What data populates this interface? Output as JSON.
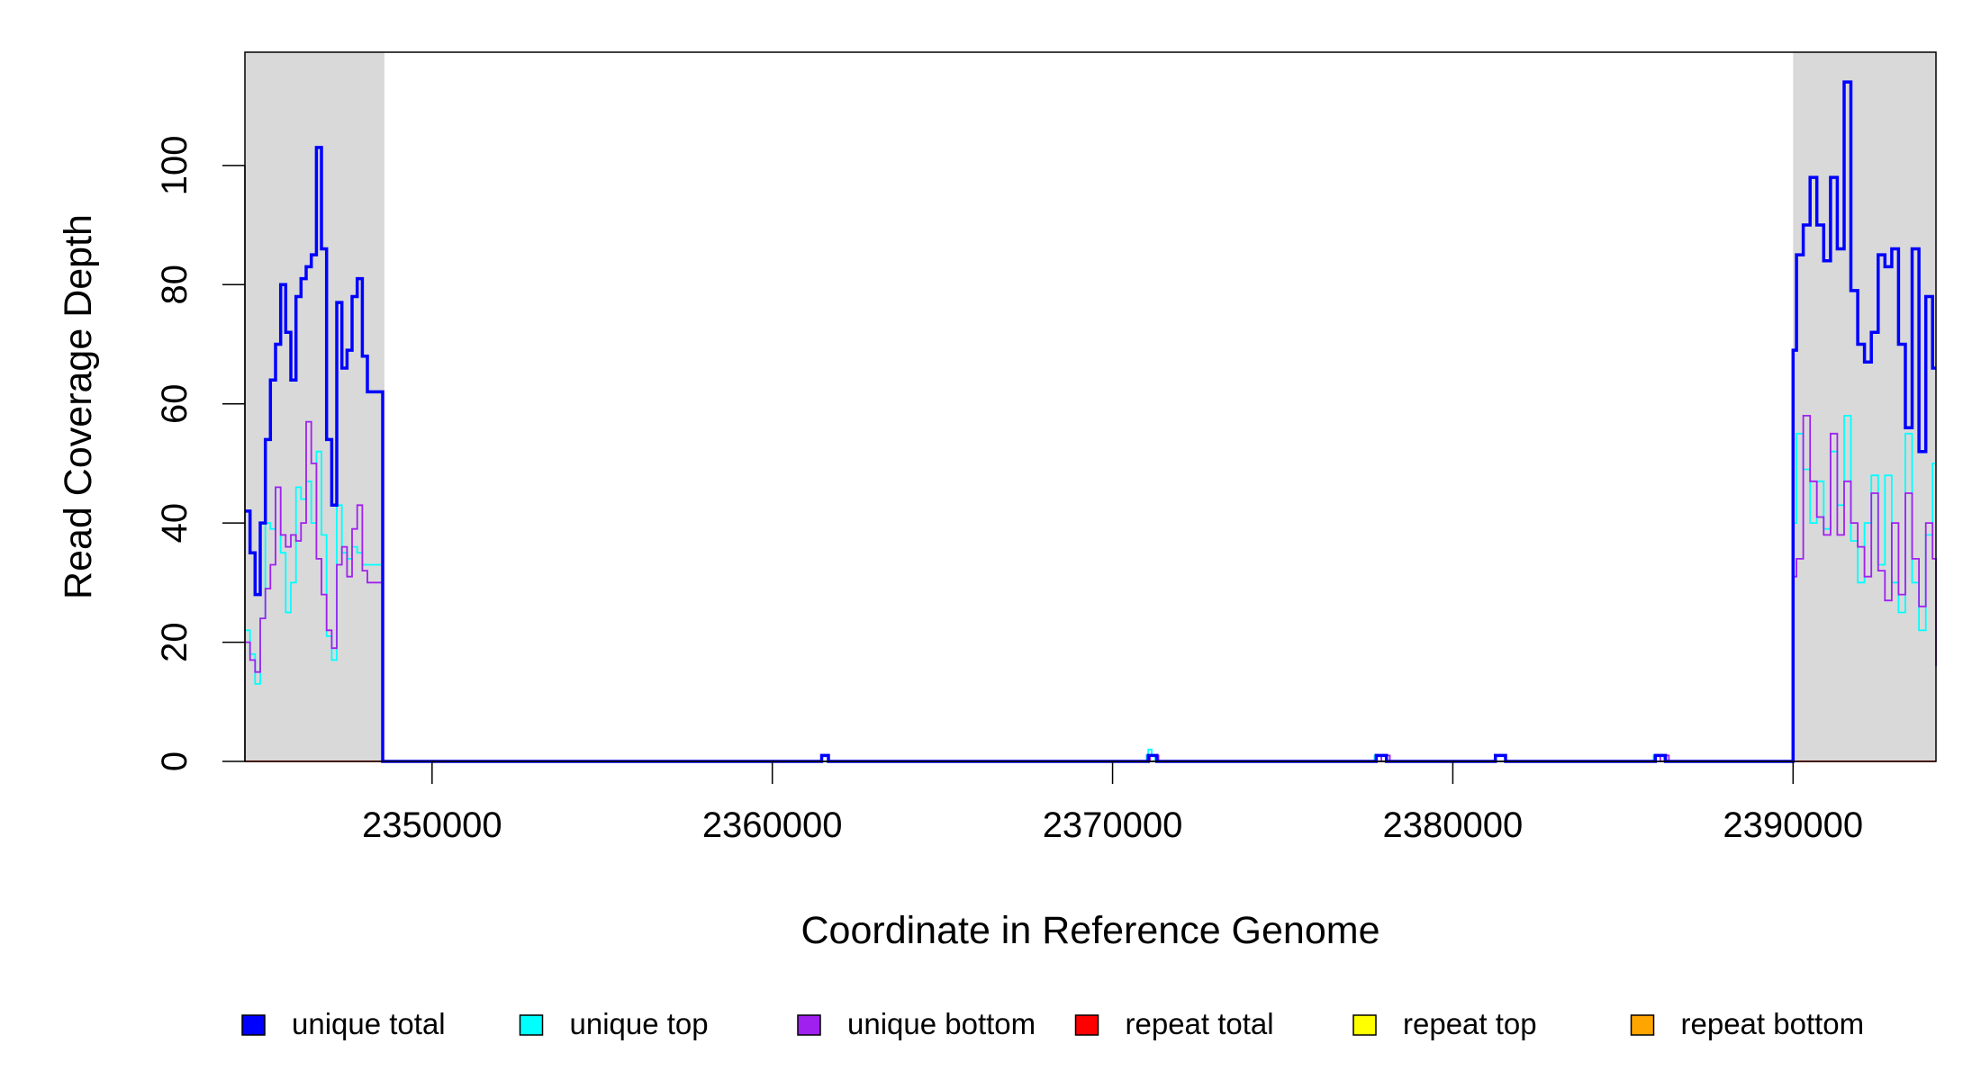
{
  "chart_data": {
    "type": "line",
    "title": "",
    "xlabel": "Coordinate in Reference Genome",
    "ylabel": "Read Coverage Depth",
    "xlim": [
      2344500,
      2394200
    ],
    "ylim": [
      0,
      119
    ],
    "x_ticks": [
      2350000,
      2360000,
      2370000,
      2380000,
      2390000
    ],
    "x_tick_labels": [
      "2350000",
      "2360000",
      "2370000",
      "2380000",
      "2390000"
    ],
    "y_ticks": [
      0,
      20,
      40,
      60,
      80,
      100
    ],
    "y_tick_labels": [
      "0",
      "20",
      "40",
      "60",
      "80",
      "100"
    ],
    "shaded_regions": [
      [
        2344500,
        2348600
      ],
      [
        2390000,
        2394200
      ]
    ],
    "shade_color": "#d9d9d9",
    "legend_position": "bottom",
    "series": [
      {
        "name": "unique total",
        "color": "#0000ff",
        "x": [
          2344500,
          2344650,
          2344800,
          2344950,
          2345100,
          2345250,
          2345400,
          2345550,
          2345700,
          2345850,
          2346000,
          2346150,
          2346300,
          2346450,
          2346600,
          2346750,
          2346900,
          2347050,
          2347200,
          2347350,
          2347500,
          2347650,
          2347800,
          2347950,
          2348100,
          2348250,
          2348400,
          2348480,
          2348550,
          2348650,
          2361400,
          2361450,
          2361600,
          2361650,
          2371000,
          2371050,
          2371200,
          2371300,
          2377700,
          2377750,
          2378000,
          2378050,
          2381200,
          2381250,
          2381500,
          2381550,
          2385900,
          2385950,
          2386200,
          2386250,
          2390000,
          2390100,
          2390300,
          2390500,
          2390700,
          2390900,
          2391100,
          2391300,
          2391500,
          2391700,
          2391900,
          2392100,
          2392300,
          2392500,
          2392700,
          2392900,
          2393100,
          2393300,
          2393500,
          2393700,
          2393900,
          2394100,
          2394200
        ],
        "y": [
          42,
          35,
          28,
          40,
          54,
          64,
          70,
          80,
          72,
          64,
          78,
          81,
          83,
          85,
          103,
          86,
          54,
          43,
          77,
          66,
          69,
          78,
          81,
          68,
          62,
          62,
          62,
          62,
          0,
          0,
          0,
          1,
          1,
          0,
          0,
          1,
          1,
          0,
          0,
          1,
          1,
          0,
          0,
          1,
          1,
          0,
          0,
          1,
          1,
          0,
          69,
          85,
          90,
          98,
          90,
          84,
          98,
          86,
          114,
          79,
          70,
          67,
          72,
          85,
          83,
          86,
          70,
          56,
          86,
          52,
          78,
          66,
          66
        ]
      },
      {
        "name": "unique top",
        "color": "#00ffff",
        "x": [
          2344500,
          2344650,
          2344800,
          2344950,
          2345100,
          2345250,
          2345400,
          2345550,
          2345700,
          2345850,
          2346000,
          2346150,
          2346300,
          2346450,
          2346600,
          2346750,
          2346900,
          2347050,
          2347200,
          2347350,
          2347500,
          2347650,
          2347800,
          2347950,
          2348100,
          2348250,
          2348400,
          2348480,
          2348550,
          2348650,
          2370950,
          2371000,
          2371050,
          2371150,
          2371250,
          2377650,
          2377700,
          2378000,
          2378050,
          2385850,
          2385900,
          2386150,
          2386200,
          2390000,
          2390100,
          2390300,
          2390500,
          2390700,
          2390900,
          2391100,
          2391300,
          2391500,
          2391700,
          2391900,
          2392100,
          2392300,
          2392500,
          2392700,
          2392900,
          2393100,
          2393300,
          2393500,
          2393700,
          2393900,
          2394100,
          2394200
        ],
        "y": [
          22,
          18,
          13,
          24,
          40,
          39,
          46,
          35,
          25,
          30,
          46,
          44,
          47,
          40,
          52,
          38,
          21,
          17,
          43,
          35,
          34,
          36,
          35,
          33,
          33,
          33,
          33,
          33,
          0,
          0,
          0,
          1,
          2,
          1,
          0,
          0,
          1,
          1,
          0,
          0,
          1,
          1,
          0,
          40,
          55,
          49,
          40,
          47,
          39,
          52,
          43,
          58,
          37,
          30,
          40,
          48,
          33,
          48,
          30,
          25,
          55,
          30,
          22,
          38,
          50,
          50
        ]
      },
      {
        "name": "unique bottom",
        "color": "#a020f0",
        "x": [
          2344500,
          2344650,
          2344800,
          2344950,
          2345100,
          2345250,
          2345400,
          2345550,
          2345700,
          2345850,
          2346000,
          2346150,
          2346300,
          2346450,
          2346600,
          2346750,
          2346900,
          2347050,
          2347200,
          2347350,
          2347500,
          2347650,
          2347800,
          2347950,
          2348100,
          2348250,
          2348400,
          2348480,
          2348550,
          2348650,
          2361400,
          2361450,
          2361600,
          2361650,
          2371050,
          2371100,
          2371300,
          2371350,
          2377850,
          2377900,
          2378100,
          2378150,
          2381200,
          2381250,
          2381500,
          2381550,
          2386050,
          2386100,
          2386300,
          2386350,
          2390000,
          2390100,
          2390300,
          2390500,
          2390700,
          2390900,
          2391100,
          2391300,
          2391500,
          2391700,
          2391900,
          2392100,
          2392300,
          2392500,
          2392700,
          2392900,
          2393100,
          2393300,
          2393500,
          2393700,
          2393900,
          2394100,
          2394200
        ],
        "y": [
          20,
          17,
          15,
          24,
          29,
          33,
          46,
          38,
          36,
          38,
          37,
          40,
          57,
          50,
          34,
          28,
          22,
          19,
          33,
          36,
          31,
          39,
          43,
          32,
          30,
          30,
          30,
          30,
          0,
          0,
          0,
          1,
          1,
          0,
          0,
          1,
          1,
          0,
          0,
          1,
          1,
          0,
          0,
          1,
          1,
          0,
          0,
          1,
          1,
          0,
          31,
          34,
          58,
          47,
          41,
          38,
          55,
          38,
          47,
          40,
          36,
          31,
          45,
          32,
          27,
          40,
          28,
          45,
          34,
          26,
          40,
          34,
          16
        ]
      },
      {
        "name": "repeat total",
        "color": "#ff0000",
        "x": [
          2344500,
          2394200
        ],
        "y": [
          0,
          0
        ]
      },
      {
        "name": "repeat top",
        "color": "#ffff00",
        "x": [
          2344500,
          2394200
        ],
        "y": [
          0,
          0
        ]
      },
      {
        "name": "repeat bottom",
        "color": "#ffa500",
        "x": [
          2344500,
          2394200
        ],
        "y": [
          0,
          0
        ]
      }
    ]
  }
}
